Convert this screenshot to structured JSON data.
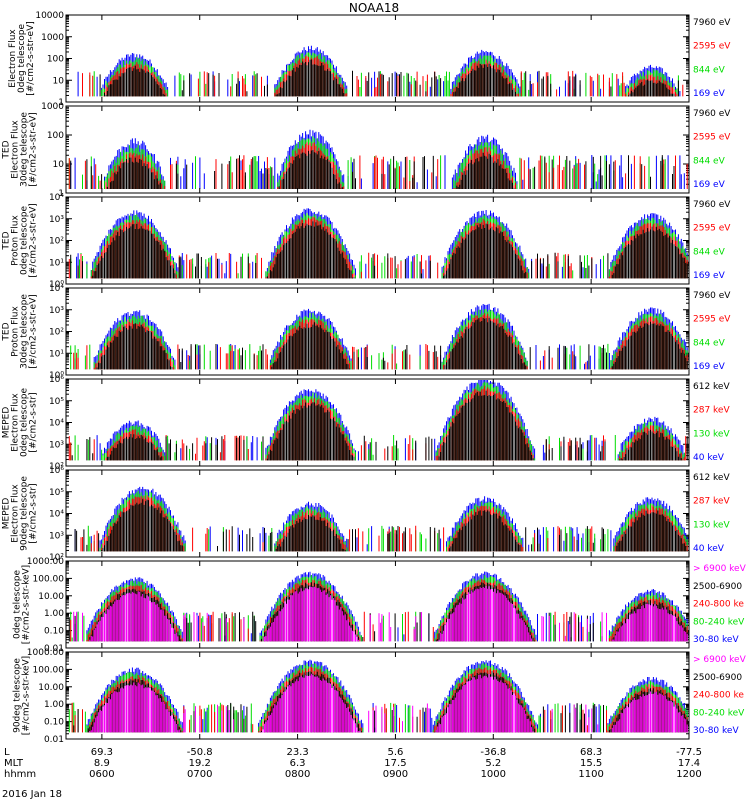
{
  "figure": {
    "title": "NOAA18",
    "date_label": "2016 Jan 18",
    "axis_rows": [
      {
        "label": "L",
        "values": [
          "69.3",
          "-50.8",
          "23.3",
          "5.6",
          "-36.8",
          "68.3",
          "-77.5"
        ]
      },
      {
        "label": "MLT",
        "values": [
          "8.9",
          "19.2",
          "6.3",
          "17.5",
          "5.2",
          "15.5",
          "17.4"
        ]
      },
      {
        "label": "hhmm",
        "values": [
          "0600",
          "0700",
          "0800",
          "0900",
          "1000",
          "1100",
          "1200"
        ]
      }
    ],
    "colors": {
      "black": "#000000",
      "red": "#ff0000",
      "green": "#00dd00",
      "blue": "#0000ff",
      "magenta": "#ff00ff"
    }
  },
  "chart_data": [
    {
      "type": "line",
      "ylabel": [
        "Electron Flux",
        "0deg telescope",
        "[#/cm2-s-str-eV]"
      ],
      "ylog": true,
      "ylim": [
        1,
        10000
      ],
      "yticks": [
        "1",
        "10",
        "100",
        "1000",
        "10000"
      ],
      "legend": [
        {
          "text": "7960 eV",
          "color": "#000000"
        },
        {
          "text": "2595 eV",
          "color": "#ff0000"
        },
        {
          "text": "844 eV",
          "color": "#00dd00"
        },
        {
          "text": "169 eV",
          "color": "#0000ff"
        }
      ],
      "passes": [
        {
          "hhmm": "0620",
          "peak": 150
        },
        {
          "hhmm": "0808",
          "peak": 300
        },
        {
          "hhmm": "0955",
          "peak": 200
        },
        {
          "hhmm": "1137",
          "peak": 40
        }
      ]
    },
    {
      "type": "line",
      "ylabel": [
        "TED",
        "Electron Flux",
        "30deg telescope",
        "[#/cm2-s-str-eV]"
      ],
      "ylog": true,
      "ylim": [
        1,
        1000
      ],
      "yticks": [
        "1",
        "10",
        "100",
        "1000"
      ],
      "legend": [
        {
          "text": "7960 eV",
          "color": "#000000"
        },
        {
          "text": "2595 eV",
          "color": "#ff0000"
        },
        {
          "text": "844 eV",
          "color": "#00dd00"
        },
        {
          "text": "169 eV",
          "color": "#0000ff"
        }
      ],
      "passes": [
        {
          "hhmm": "0620",
          "peak": 60
        },
        {
          "hhmm": "0808",
          "peak": 120
        },
        {
          "hhmm": "0955",
          "peak": 80
        }
      ]
    },
    {
      "type": "line",
      "ylabel": [
        "TED",
        "Proton Flux",
        "0deg telescope",
        "[#/cm2-s-str-eV]"
      ],
      "ylog": true,
      "ylim": [
        1,
        10000
      ],
      "yticks": [
        "10⁰",
        "10¹",
        "10²",
        "10³",
        "10⁴"
      ],
      "legend": [
        {
          "text": "7960 eV",
          "color": "#000000"
        },
        {
          "text": "2595 eV",
          "color": "#ff0000"
        },
        {
          "text": "844 eV",
          "color": "#00dd00"
        },
        {
          "text": "169 eV",
          "color": "#0000ff"
        }
      ],
      "passes": [
        {
          "hhmm": "0620",
          "peak": 2000
        },
        {
          "hhmm": "0808",
          "peak": 2500
        },
        {
          "hhmm": "0955",
          "peak": 2000
        },
        {
          "hhmm": "1137",
          "peak": 1500
        }
      ]
    },
    {
      "type": "line",
      "ylabel": [
        "TED",
        "Proton Flux",
        "30deg telescope",
        "[#/cm2-s-str-eV]"
      ],
      "ylog": true,
      "ylim": [
        1,
        10000
      ],
      "yticks": [
        "10⁰",
        "10¹",
        "10²",
        "10³",
        "10⁴"
      ],
      "legend": [
        {
          "text": "7960 eV",
          "color": "#000000"
        },
        {
          "text": "2595 eV",
          "color": "#ff0000"
        },
        {
          "text": "844 eV",
          "color": "#00dd00"
        },
        {
          "text": "169 eV",
          "color": "#0000ff"
        }
      ],
      "passes": [
        {
          "hhmm": "0620",
          "peak": 800
        },
        {
          "hhmm": "0808",
          "peak": 900
        },
        {
          "hhmm": "0955",
          "peak": 1500
        },
        {
          "hhmm": "1137",
          "peak": 1000
        }
      ]
    },
    {
      "type": "line",
      "ylabel": [
        "MEPED",
        "Electron Flux",
        "0deg telescope",
        "[#/cm2-s-str]"
      ],
      "ylog": true,
      "ylim": [
        100,
        1000000
      ],
      "yticks": [
        "10²",
        "10³",
        "10⁴",
        "10⁵",
        "10⁶"
      ],
      "legend": [
        {
          "text": "612 keV",
          "color": "#000000"
        },
        {
          "text": "287 keV",
          "color": "#ff0000"
        },
        {
          "text": "130 keV",
          "color": "#00dd00"
        },
        {
          "text": "40 keV",
          "color": "#0000ff"
        }
      ],
      "passes": [
        {
          "hhmm": "0620",
          "peak": 10000
        },
        {
          "hhmm": "0808",
          "peak": 300000
        },
        {
          "hhmm": "0955",
          "peak": 1000000
        },
        {
          "hhmm": "1137",
          "peak": 15000
        }
      ]
    },
    {
      "type": "line",
      "ylabel": [
        "MEPED",
        "Electron Flux",
        "90deg telescope",
        "[#/cm2-s-str]"
      ],
      "ylog": true,
      "ylim": [
        100,
        1000000
      ],
      "yticks": [
        "10²",
        "10³",
        "10⁴",
        "10⁵",
        "10⁶"
      ],
      "legend": [
        {
          "text": "612 keV",
          "color": "#000000"
        },
        {
          "text": "287 keV",
          "color": "#ff0000"
        },
        {
          "text": "130 keV",
          "color": "#00dd00"
        },
        {
          "text": "40 keV",
          "color": "#0000ff"
        }
      ],
      "passes": [
        {
          "hhmm": "0625",
          "peak": 150000
        },
        {
          "hhmm": "0808",
          "peak": 30000
        },
        {
          "hhmm": "0955",
          "peak": 50000
        },
        {
          "hhmm": "1137",
          "peak": 50000
        }
      ]
    },
    {
      "type": "line",
      "ylabel": [
        "0deg telescope",
        "[#/cm2-s-str-keV]"
      ],
      "ylog": true,
      "ylim": [
        0.01,
        1000
      ],
      "yticks": [
        "0.01",
        "0.10",
        "1.00",
        "10.00",
        "100.00",
        "1000.00"
      ],
      "legend": [
        {
          "text": "> 6900 keV",
          "color": "#ff00ff"
        },
        {
          "text": "2500-6900",
          "color": "#000000"
        },
        {
          "text": "240-800 ke",
          "color": "#ff0000"
        },
        {
          "text": "80-240 keV",
          "color": "#00dd00"
        },
        {
          "text": "30-80 keV",
          "color": "#0000ff"
        }
      ],
      "passes": [
        {
          "hhmm": "0620",
          "peak": 100
        },
        {
          "hhmm": "0808",
          "peak": 200
        },
        {
          "hhmm": "0955",
          "peak": 200
        },
        {
          "hhmm": "1137",
          "peak": 20
        }
      ]
    },
    {
      "type": "line",
      "ylabel": [
        "90deg telescope",
        "[#/cm2-s-str-keV]"
      ],
      "ylog": true,
      "ylim": [
        0.01,
        1000
      ],
      "yticks": [
        "0.01",
        "0.10",
        "1.00",
        "10.00",
        "100.00",
        "1000.00"
      ],
      "legend": [
        {
          "text": "> 6900 keV",
          "color": "#ff00ff"
        },
        {
          "text": "2500-6900",
          "color": "#000000"
        },
        {
          "text": "240-800 ke",
          "color": "#ff0000"
        },
        {
          "text": "80-240 keV",
          "color": "#00dd00"
        },
        {
          "text": "30-80 keV",
          "color": "#0000ff"
        }
      ],
      "passes": [
        {
          "hhmm": "0620",
          "peak": 100
        },
        {
          "hhmm": "0808",
          "peak": 300
        },
        {
          "hhmm": "0955",
          "peak": 300
        },
        {
          "hhmm": "1137",
          "peak": 30
        }
      ]
    }
  ]
}
